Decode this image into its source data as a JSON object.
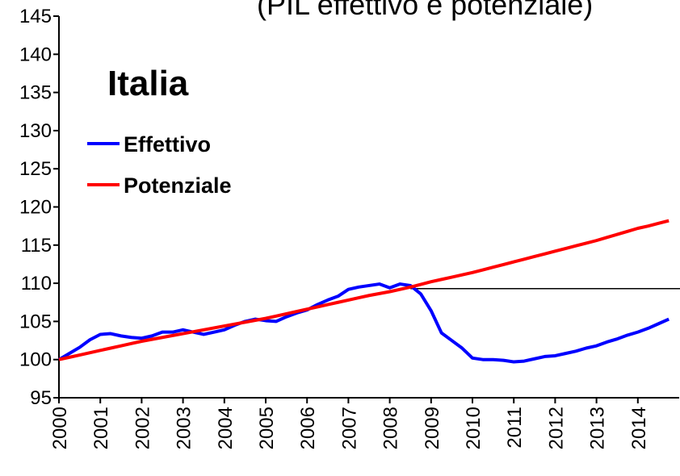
{
  "chart_data": {
    "type": "line",
    "title": "(PIL effettivo e potenziale)",
    "annotation": "Italia",
    "x": [
      2000,
      2000.25,
      2000.5,
      2000.75,
      2001,
      2001.25,
      2001.5,
      2001.75,
      2002,
      2002.25,
      2002.5,
      2002.75,
      2003,
      2003.25,
      2003.5,
      2003.75,
      2004,
      2004.25,
      2004.5,
      2004.75,
      2005,
      2005.25,
      2005.5,
      2005.75,
      2006,
      2006.25,
      2006.5,
      2006.75,
      2007,
      2007.25,
      2007.5,
      2007.75,
      2008,
      2008.25,
      2008.5,
      2008.75,
      2009,
      2009.25,
      2009.5,
      2009.75,
      2010,
      2010.25,
      2010.5,
      2010.75,
      2011,
      2011.25,
      2011.5,
      2011.75,
      2012,
      2012.25,
      2012.5,
      2012.75,
      2013,
      2013.25,
      2013.5,
      2013.75,
      2014,
      2014.25,
      2014.5,
      2014.75
    ],
    "series": [
      {
        "name": "Effettivo",
        "color": "#0000ff",
        "values": [
          100,
          100.8,
          101.6,
          102.6,
          103.3,
          103.4,
          103.1,
          102.9,
          102.8,
          103.1,
          103.6,
          103.6,
          103.9,
          103.6,
          103.3,
          103.6,
          103.9,
          104.5,
          105.0,
          105.3,
          105.1,
          105.0,
          105.6,
          106.1,
          106.5,
          107.2,
          107.8,
          108.3,
          109.2,
          109.5,
          109.7,
          109.9,
          109.4,
          109.9,
          109.7,
          108.6,
          106.4,
          103.5,
          102.5,
          101.5,
          100.2,
          100.0,
          100.0,
          99.9,
          99.7,
          99.8,
          100.1,
          100.4,
          100.5,
          100.8,
          101.1,
          101.5,
          101.8,
          102.3,
          102.7,
          103.2,
          103.6,
          104.1,
          104.7,
          105.3
        ]
      },
      {
        "name": "Potenziale",
        "color": "#ff0000",
        "values": [
          100,
          100.3,
          100.6,
          100.9,
          101.2,
          101.5,
          101.8,
          102.1,
          102.4,
          102.65,
          102.9,
          103.15,
          103.4,
          103.65,
          103.9,
          104.15,
          104.4,
          104.65,
          104.9,
          105.15,
          105.4,
          105.7,
          106.0,
          106.3,
          106.6,
          106.9,
          107.2,
          107.5,
          107.8,
          108.1,
          108.4,
          108.65,
          108.9,
          109.2,
          109.5,
          109.85,
          110.2,
          110.5,
          110.8,
          111.1,
          111.4,
          111.75,
          112.1,
          112.45,
          112.8,
          113.15,
          113.5,
          113.85,
          114.2,
          114.55,
          114.9,
          115.25,
          115.6,
          116.0,
          116.4,
          116.8,
          117.2,
          117.5,
          117.85,
          118.2
        ]
      }
    ],
    "reference_line": {
      "y": 109.3,
      "x_start": 2008.5,
      "color": "#000000"
    },
    "xlim": [
      2000,
      2015
    ],
    "xticks": [
      2000,
      2001,
      2002,
      2003,
      2004,
      2005,
      2006,
      2007,
      2008,
      2009,
      2010,
      2011,
      2012,
      2013,
      2014
    ],
    "ylim": [
      95,
      145
    ],
    "yticks": [
      95,
      100,
      105,
      110,
      115,
      120,
      125,
      130,
      135,
      140,
      145
    ]
  }
}
